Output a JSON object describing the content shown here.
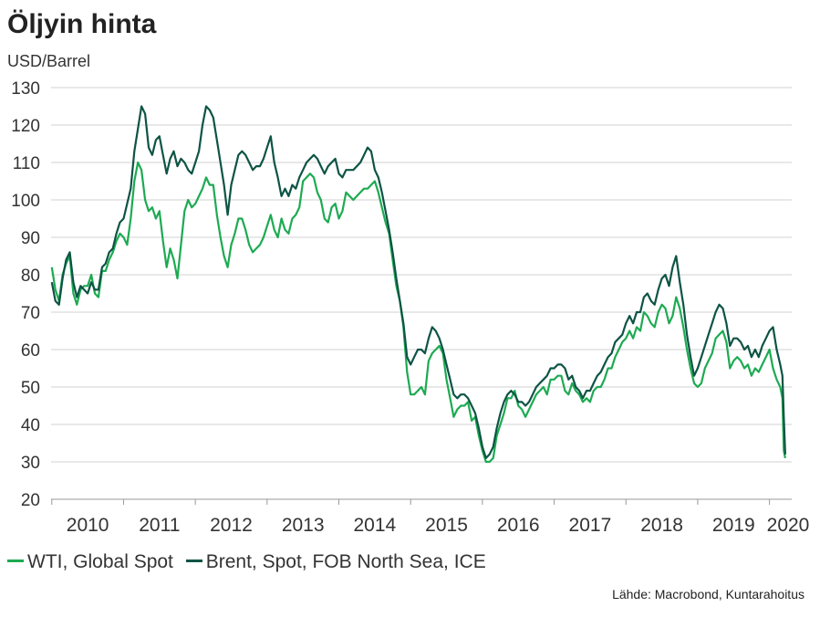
{
  "title": "Öljyin hinta",
  "unit_label": "USD/Barrel",
  "source": "Lähde: Macrobond, Kuntarahoitus",
  "colors": {
    "wti": "#1daa52",
    "brent": "#0d5444",
    "grid": "#d0d0d0",
    "axis": "#999999"
  },
  "chart_data": {
    "type": "line",
    "title": "Öljyin hinta",
    "ylabel": "USD/Barrel",
    "xlabel": "",
    "ylim": [
      20,
      130
    ],
    "xlim": [
      2009.99,
      2020.31
    ],
    "yticks": [
      20,
      30,
      40,
      50,
      60,
      70,
      80,
      90,
      100,
      110,
      120,
      130
    ],
    "year_ticks": [
      2010,
      2011,
      2012,
      2013,
      2014,
      2015,
      2016,
      2017,
      2018,
      2019,
      2020
    ],
    "year_labels": [
      "2010",
      "2011",
      "2012",
      "2013",
      "2014",
      "2015",
      "2016",
      "2017",
      "2018",
      "2019",
      "2020"
    ],
    "grid": true,
    "legend_position": "bottom-left",
    "series": [
      {
        "name": "WTI, Global Spot",
        "key": "wti",
        "x": [
          2010.0,
          2010.05,
          2010.1,
          2010.15,
          2010.2,
          2010.25,
          2010.3,
          2010.35,
          2010.4,
          2010.45,
          2010.5,
          2010.55,
          2010.6,
          2010.65,
          2010.7,
          2010.75,
          2010.8,
          2010.85,
          2010.9,
          2010.95,
          2011.0,
          2011.05,
          2011.1,
          2011.15,
          2011.2,
          2011.25,
          2011.3,
          2011.35,
          2011.4,
          2011.45,
          2011.5,
          2011.55,
          2011.6,
          2011.65,
          2011.7,
          2011.75,
          2011.8,
          2011.85,
          2011.9,
          2011.95,
          2012.0,
          2012.05,
          2012.1,
          2012.15,
          2012.2,
          2012.25,
          2012.3,
          2012.35,
          2012.4,
          2012.45,
          2012.5,
          2012.55,
          2012.6,
          2012.65,
          2012.7,
          2012.75,
          2012.8,
          2012.85,
          2012.9,
          2012.95,
          2013.0,
          2013.05,
          2013.1,
          2013.15,
          2013.2,
          2013.25,
          2013.3,
          2013.35,
          2013.4,
          2013.45,
          2013.5,
          2013.55,
          2013.6,
          2013.65,
          2013.7,
          2013.75,
          2013.8,
          2013.85,
          2013.9,
          2013.95,
          2014.0,
          2014.05,
          2014.1,
          2014.15,
          2014.2,
          2014.25,
          2014.3,
          2014.35,
          2014.4,
          2014.45,
          2014.5,
          2014.55,
          2014.6,
          2014.65,
          2014.7,
          2014.75,
          2014.8,
          2014.85,
          2014.9,
          2014.95,
          2015.0,
          2015.05,
          2015.1,
          2015.15,
          2015.2,
          2015.25,
          2015.3,
          2015.35,
          2015.4,
          2015.45,
          2015.5,
          2015.55,
          2015.6,
          2015.65,
          2015.7,
          2015.75,
          2015.8,
          2015.85,
          2015.9,
          2015.95,
          2016.0,
          2016.05,
          2016.1,
          2016.15,
          2016.2,
          2016.25,
          2016.3,
          2016.35,
          2016.4,
          2016.45,
          2016.5,
          2016.55,
          2016.6,
          2016.65,
          2016.7,
          2016.75,
          2016.8,
          2016.85,
          2016.9,
          2016.95,
          2017.0,
          2017.05,
          2017.1,
          2017.15,
          2017.2,
          2017.25,
          2017.3,
          2017.35,
          2017.4,
          2017.45,
          2017.5,
          2017.55,
          2017.6,
          2017.65,
          2017.7,
          2017.75,
          2017.8,
          2017.85,
          2017.9,
          2017.95,
          2018.0,
          2018.05,
          2018.1,
          2018.15,
          2018.2,
          2018.25,
          2018.3,
          2018.35,
          2018.4,
          2018.45,
          2018.5,
          2018.55,
          2018.6,
          2018.65,
          2018.7,
          2018.75,
          2018.8,
          2018.85,
          2018.9,
          2018.95,
          2019.0,
          2019.05,
          2019.1,
          2019.15,
          2019.2,
          2019.25,
          2019.3,
          2019.35,
          2019.4,
          2019.45,
          2019.5,
          2019.55,
          2019.6,
          2019.65,
          2019.7,
          2019.75,
          2019.8,
          2019.85,
          2019.9,
          2019.95,
          2020.0,
          2020.05,
          2020.1,
          2020.15,
          2020.18,
          2020.2,
          2020.22
        ],
        "values": [
          82,
          76,
          73,
          80,
          83,
          85,
          75,
          72,
          76,
          77,
          77,
          80,
          75,
          74,
          81,
          81,
          84,
          86,
          89,
          91,
          90,
          88,
          95,
          105,
          110,
          108,
          100,
          97,
          98,
          95,
          97,
          89,
          82,
          87,
          84,
          79,
          88,
          97,
          100,
          98,
          99,
          101,
          103,
          106,
          104,
          104,
          96,
          90,
          85,
          82,
          88,
          91,
          95,
          95,
          92,
          88,
          86,
          87,
          88,
          90,
          93,
          96,
          92,
          90,
          95,
          92,
          91,
          95,
          96,
          98,
          105,
          106,
          107,
          106,
          102,
          100,
          95,
          94,
          98,
          99,
          95,
          97,
          102,
          101,
          100,
          101,
          102,
          103,
          103,
          104,
          105,
          102,
          98,
          94,
          91,
          84,
          77,
          73,
          66,
          54,
          48,
          48,
          49,
          50,
          48,
          57,
          59,
          60,
          61,
          59,
          52,
          47,
          42,
          44,
          45,
          45,
          46,
          41,
          42,
          37,
          33,
          30,
          30,
          31,
          37,
          40,
          43,
          47,
          47,
          49,
          45,
          44,
          42,
          44,
          46,
          48,
          49,
          50,
          48,
          52,
          52,
          53,
          53,
          49,
          48,
          51,
          49,
          48,
          46,
          47,
          46,
          49,
          50,
          50,
          52,
          55,
          55,
          58,
          60,
          62,
          63,
          65,
          63,
          66,
          65,
          70,
          69,
          67,
          66,
          70,
          72,
          71,
          67,
          69,
          74,
          71,
          66,
          60,
          55,
          51,
          50,
          51,
          55,
          57,
          59,
          63,
          64,
          65,
          62,
          55,
          57,
          58,
          57,
          55,
          56,
          53,
          55,
          54,
          56,
          58,
          60,
          55,
          52,
          50,
          47,
          33,
          31
        ]
      },
      {
        "name": "Brent, Spot, FOB North Sea, ICE",
        "key": "brent",
        "x": [
          2010.0,
          2010.05,
          2010.1,
          2010.15,
          2010.2,
          2010.25,
          2010.3,
          2010.35,
          2010.4,
          2010.45,
          2010.5,
          2010.55,
          2010.6,
          2010.65,
          2010.7,
          2010.75,
          2010.8,
          2010.85,
          2010.9,
          2010.95,
          2011.0,
          2011.05,
          2011.1,
          2011.15,
          2011.2,
          2011.25,
          2011.3,
          2011.35,
          2011.4,
          2011.45,
          2011.5,
          2011.55,
          2011.6,
          2011.65,
          2011.7,
          2011.75,
          2011.8,
          2011.85,
          2011.9,
          2011.95,
          2012.0,
          2012.05,
          2012.1,
          2012.15,
          2012.2,
          2012.25,
          2012.3,
          2012.35,
          2012.4,
          2012.45,
          2012.5,
          2012.55,
          2012.6,
          2012.65,
          2012.7,
          2012.75,
          2012.8,
          2012.85,
          2012.9,
          2012.95,
          2013.0,
          2013.05,
          2013.1,
          2013.15,
          2013.2,
          2013.25,
          2013.3,
          2013.35,
          2013.4,
          2013.45,
          2013.5,
          2013.55,
          2013.6,
          2013.65,
          2013.7,
          2013.75,
          2013.8,
          2013.85,
          2013.9,
          2013.95,
          2014.0,
          2014.05,
          2014.1,
          2014.15,
          2014.2,
          2014.25,
          2014.3,
          2014.35,
          2014.4,
          2014.45,
          2014.5,
          2014.55,
          2014.6,
          2014.65,
          2014.7,
          2014.75,
          2014.8,
          2014.85,
          2014.9,
          2014.95,
          2015.0,
          2015.05,
          2015.1,
          2015.15,
          2015.2,
          2015.25,
          2015.3,
          2015.35,
          2015.4,
          2015.45,
          2015.5,
          2015.55,
          2015.6,
          2015.65,
          2015.7,
          2015.75,
          2015.8,
          2015.85,
          2015.9,
          2015.95,
          2016.0,
          2016.05,
          2016.1,
          2016.15,
          2016.2,
          2016.25,
          2016.3,
          2016.35,
          2016.4,
          2016.45,
          2016.5,
          2016.55,
          2016.6,
          2016.65,
          2016.7,
          2016.75,
          2016.8,
          2016.85,
          2016.9,
          2016.95,
          2017.0,
          2017.05,
          2017.1,
          2017.15,
          2017.2,
          2017.25,
          2017.3,
          2017.35,
          2017.4,
          2017.45,
          2017.5,
          2017.55,
          2017.6,
          2017.65,
          2017.7,
          2017.75,
          2017.8,
          2017.85,
          2017.9,
          2017.95,
          2018.0,
          2018.05,
          2018.1,
          2018.15,
          2018.2,
          2018.25,
          2018.3,
          2018.35,
          2018.4,
          2018.45,
          2018.5,
          2018.55,
          2018.6,
          2018.65,
          2018.7,
          2018.75,
          2018.8,
          2018.85,
          2018.9,
          2018.95,
          2019.0,
          2019.05,
          2019.1,
          2019.15,
          2019.2,
          2019.25,
          2019.3,
          2019.35,
          2019.4,
          2019.45,
          2019.5,
          2019.55,
          2019.6,
          2019.65,
          2019.7,
          2019.75,
          2019.8,
          2019.85,
          2019.9,
          2019.95,
          2020.0,
          2020.05,
          2020.1,
          2020.15,
          2020.18,
          2020.2,
          2020.22
        ],
        "values": [
          78,
          73,
          72,
          79,
          84,
          86,
          78,
          74,
          77,
          76,
          75,
          78,
          76,
          76,
          82,
          83,
          86,
          87,
          91,
          94,
          95,
          99,
          103,
          113,
          119,
          125,
          123,
          114,
          112,
          116,
          117,
          112,
          107,
          111,
          113,
          109,
          111,
          110,
          108,
          107,
          110,
          113,
          120,
          125,
          124,
          122,
          116,
          110,
          104,
          96,
          104,
          108,
          112,
          113,
          112,
          110,
          108,
          109,
          109,
          111,
          114,
          117,
          110,
          106,
          101,
          103,
          101,
          104,
          103,
          106,
          108,
          110,
          111,
          112,
          111,
          109,
          107,
          109,
          110,
          111,
          107,
          106,
          108,
          108,
          108,
          109,
          110,
          112,
          114,
          113,
          108,
          106,
          102,
          97,
          92,
          86,
          79,
          73,
          67,
          58,
          56,
          58,
          60,
          60,
          59,
          63,
          66,
          65,
          63,
          60,
          56,
          52,
          48,
          47,
          48,
          48,
          47,
          45,
          43,
          39,
          34,
          31,
          32,
          34,
          39,
          43,
          46,
          48,
          49,
          48,
          46,
          46,
          45,
          46,
          48,
          50,
          51,
          52,
          53,
          55,
          55,
          56,
          56,
          55,
          52,
          53,
          50,
          49,
          47,
          49,
          49,
          51,
          53,
          54,
          56,
          58,
          59,
          62,
          63,
          64,
          67,
          69,
          67,
          70,
          70,
          74,
          75,
          73,
          72,
          76,
          79,
          80,
          77,
          82,
          85,
          78,
          72,
          64,
          58,
          53,
          55,
          58,
          61,
          64,
          67,
          70,
          72,
          71,
          67,
          61,
          63,
          63,
          62,
          60,
          61,
          58,
          60,
          58,
          61,
          63,
          65,
          66,
          60,
          56,
          53,
          42,
          32
        ]
      }
    ]
  }
}
